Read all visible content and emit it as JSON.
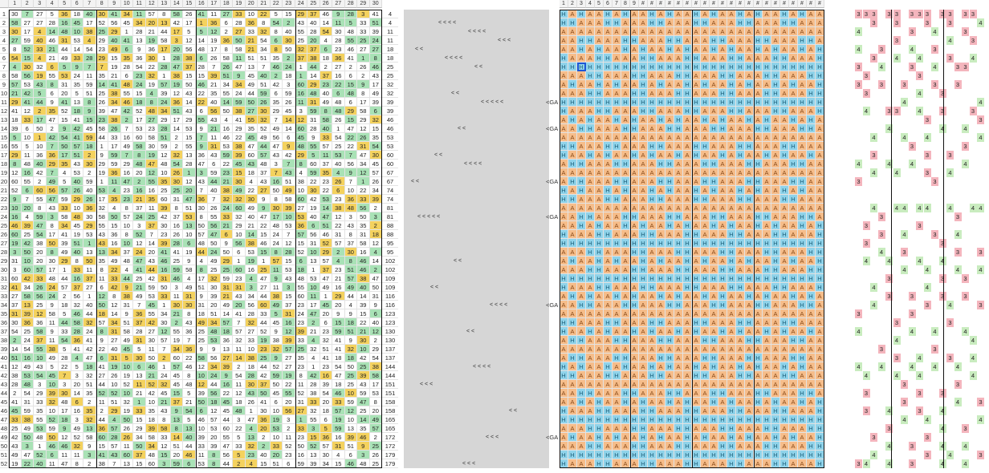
{
  "rows": [
    1,
    2,
    3,
    4,
    5,
    6,
    7,
    8,
    9,
    10,
    11,
    12,
    13,
    14,
    15,
    16,
    17,
    18,
    19,
    20,
    21,
    22,
    23,
    24,
    25,
    26,
    27,
    28,
    29,
    30,
    31,
    32,
    33,
    34,
    35,
    36,
    37,
    38,
    39,
    40,
    41,
    42,
    43,
    44,
    45,
    46,
    47,
    48,
    49,
    50,
    51,
    52
  ],
  "colHeaders": [
    "1",
    "2",
    "3",
    "4",
    "5",
    "6",
    "7",
    "8",
    "9",
    "10",
    "11",
    "12",
    "13",
    "14",
    "15",
    "16",
    "17",
    "18",
    "19",
    "20",
    "21",
    "22",
    "23",
    "24",
    "25",
    "26",
    "27",
    "28",
    "29",
    "30"
  ],
  "hmHeaders": [
    "1",
    "2",
    "3",
    "4",
    "5",
    "6",
    "7",
    "8",
    "9",
    "#",
    "#",
    "#",
    "#",
    "#",
    "#",
    "#",
    "#",
    "#",
    "#",
    "#",
    "#",
    "#",
    "#",
    "#",
    "#",
    "#",
    "#",
    "#",
    "#",
    "#"
  ],
  "totals": [
    4,
    4,
    11,
    11,
    18,
    18,
    25,
    25,
    32,
    32,
    39,
    39,
    46,
    46,
    53,
    53,
    60,
    60,
    67,
    67,
    74,
    74,
    81,
    81,
    88,
    88,
    95,
    95,
    102,
    102,
    109,
    109,
    116,
    116,
    123,
    123,
    130,
    130,
    137,
    137,
    144,
    144,
    151,
    151,
    158,
    158,
    165,
    165,
    172,
    172,
    179,
    179
  ],
  "gaLabel": "<GA",
  "gaRows": [
    10,
    13,
    19,
    23,
    33,
    48
  ],
  "marks": {
    "1": "< < < <",
    "2": "< < < <",
    "3": "< < <",
    "4": "< <",
    "5": "< <  < <",
    "6": "< <",
    "9": "< <",
    "10": "< < < < <",
    "13": "< <",
    "16": "< <",
    "17": "< < < <",
    "19": "< <",
    "23": "< < < < <",
    "28": "< <",
    "31": "< <",
    "33": "< < < <",
    "36": "< <",
    "40": "< < < <",
    "42": "< < <",
    "45": "< <",
    "48": "< < <",
    "51": "< < <"
  },
  "badgeRows": {
    "0": [
      [
        "3",
        "p"
      ],
      [
        "3",
        "p"
      ],
      [
        "3",
        "p"
      ],
      [
        "3",
        "p"
      ],
      [
        "3",
        "p"
      ],
      [
        "3",
        "p"
      ],
      [
        "3",
        "p"
      ],
      [
        "3",
        "p"
      ],
      [
        "3",
        "p"
      ],
      [
        "3",
        "p"
      ],
      [
        "3",
        "p"
      ],
      [
        "3",
        "p"
      ]
    ],
    "1": [
      [
        "3",
        "p"
      ],
      [
        "3",
        "p"
      ],
      [
        "3",
        "p"
      ],
      [
        "3",
        "p"
      ],
      [
        "4",
        "g"
      ]
    ],
    "2": [
      [
        "4",
        "g"
      ],
      [
        "4",
        "g"
      ],
      [
        "3",
        "p"
      ],
      [
        "3",
        "p"
      ]
    ],
    "3": [
      [
        "3",
        "p"
      ],
      [
        "3",
        "p"
      ],
      [
        "4",
        "g"
      ]
    ],
    "4": [
      [
        "3",
        "p"
      ],
      [
        "3",
        "p"
      ],
      [
        "4",
        "g"
      ],
      [
        "4",
        "g"
      ]
    ],
    "5": [
      [
        "4",
        "g"
      ],
      [
        "4",
        "g"
      ],
      [
        "4",
        "g"
      ],
      [
        "3",
        "p"
      ],
      [
        "3",
        "p"
      ]
    ],
    "6": [
      [
        "3",
        "p"
      ],
      [
        "4",
        "g"
      ],
      [
        "4",
        "g"
      ],
      [
        "3",
        "p"
      ],
      [
        "3",
        "p"
      ],
      [
        "3",
        "p"
      ]
    ],
    "7": [
      [
        "3",
        "p"
      ],
      [
        "3",
        "p"
      ]
    ],
    "8": [
      [
        "3",
        "p"
      ],
      [
        "3",
        "p"
      ],
      [
        "3",
        "p"
      ],
      [
        "3",
        "p"
      ],
      [
        "3",
        "p"
      ]
    ],
    "9": [
      [
        "3",
        "p"
      ],
      [
        "3",
        "p"
      ],
      [
        "4",
        "g"
      ]
    ],
    "10": [
      [
        "4",
        "g"
      ],
      [
        "4",
        "g"
      ]
    ],
    "11": [
      [
        "3",
        "p"
      ],
      [
        "3",
        "p"
      ],
      [
        "4",
        "g"
      ],
      [
        "4",
        "g"
      ],
      [
        "3",
        "p"
      ],
      [
        "3",
        "p"
      ]
    ],
    "12": [
      [
        "3",
        "p"
      ],
      [
        "3",
        "p"
      ]
    ],
    "13": [
      [
        "4",
        "g"
      ],
      [
        "4",
        "g"
      ],
      [
        "4",
        "g"
      ]
    ],
    "14": [
      [
        "4",
        "g"
      ],
      [
        "4",
        "g"
      ],
      [
        "4",
        "g"
      ],
      [
        "4",
        "g"
      ]
    ],
    "15": [
      [
        "3",
        "p"
      ],
      [
        "3",
        "p"
      ]
    ],
    "16": [
      [
        "3",
        "p"
      ],
      [
        "3",
        "p"
      ],
      [
        "3",
        "p"
      ]
    ],
    "17": [
      [
        "4",
        "g"
      ],
      [
        "4",
        "g"
      ],
      [
        "4",
        "g"
      ],
      [
        "4",
        "g"
      ]
    ],
    "18": [
      [
        "4",
        "g"
      ],
      [
        "4",
        "g"
      ],
      [
        "4",
        "g"
      ],
      [
        "3",
        "p"
      ]
    ],
    "19": [
      [
        "3",
        "p"
      ],
      [
        "3",
        "p"
      ]
    ],
    "22": [
      [
        "4",
        "g"
      ],
      [
        "4",
        "g"
      ],
      [
        "4",
        "g"
      ],
      [
        "4",
        "g"
      ],
      [
        "4",
        "g"
      ],
      [
        "4",
        "g"
      ],
      [
        "4",
        "g"
      ],
      [
        "4",
        "g"
      ]
    ],
    "23": [
      [
        "3",
        "p"
      ],
      [
        "3",
        "p"
      ]
    ],
    "24": [
      [
        "3",
        "p"
      ],
      [
        "3",
        "p"
      ]
    ],
    "25": [
      [
        "4",
        "g"
      ],
      [
        "4",
        "g"
      ],
      [
        "3",
        "p"
      ],
      [
        "3",
        "p"
      ]
    ],
    "26": [
      [
        "3",
        "p"
      ],
      [
        "3",
        "p"
      ]
    ],
    "27": [
      [
        "3",
        "p"
      ],
      [
        "3",
        "p"
      ],
      [
        "3",
        "p"
      ],
      [
        "4",
        "g"
      ]
    ],
    "28": [
      [
        "4",
        "g"
      ],
      [
        "4",
        "g"
      ],
      [
        "4",
        "g"
      ],
      [
        "4",
        "g"
      ]
    ],
    "29": [
      [
        "4",
        "g"
      ],
      [
        "4",
        "g"
      ],
      [
        "4",
        "g"
      ],
      [
        "4",
        "g"
      ]
    ],
    "30": [
      [
        "3",
        "p"
      ],
      [
        "3",
        "p"
      ],
      [
        "3",
        "p"
      ]
    ],
    "31": [
      [
        "4",
        "g"
      ],
      [
        "4",
        "g"
      ]
    ],
    "32": [
      [
        "3",
        "p"
      ],
      [
        "3",
        "p"
      ],
      [
        "3",
        "p"
      ],
      [
        "3",
        "p"
      ]
    ],
    "33": [
      [
        "4",
        "g"
      ],
      [
        "4",
        "g"
      ],
      [
        "3",
        "p"
      ],
      [
        "3",
        "p"
      ]
    ],
    "34": [
      [
        "3",
        "p"
      ],
      [
        "3",
        "p"
      ]
    ],
    "35": [
      [
        "3",
        "p"
      ],
      [
        "3",
        "p"
      ]
    ],
    "36": [
      [
        "4",
        "g"
      ],
      [
        "4",
        "g"
      ],
      [
        "4",
        "g"
      ],
      [
        "4",
        "g"
      ]
    ],
    "37": [
      [
        "4",
        "g"
      ],
      [
        "4",
        "g"
      ]
    ],
    "38": [
      [
        "3",
        "p"
      ],
      [
        "3",
        "p"
      ]
    ],
    "39": [
      [
        "4",
        "g"
      ],
      [
        "4",
        "g"
      ],
      [
        "3",
        "p"
      ],
      [
        "3",
        "p"
      ]
    ],
    "40": [
      [
        "4",
        "g"
      ],
      [
        "4",
        "g"
      ],
      [
        "4",
        "g"
      ],
      [
        "4",
        "g"
      ],
      [
        "4",
        "g"
      ]
    ],
    "41": [
      [
        "4",
        "g"
      ],
      [
        "4",
        "g"
      ],
      [
        "4",
        "g"
      ],
      [
        "4",
        "g"
      ]
    ],
    "42": [
      [
        "3",
        "p"
      ],
      [
        "3",
        "p"
      ]
    ],
    "43": [
      [
        "3",
        "p"
      ],
      [
        "3",
        "p"
      ],
      [
        "3",
        "p"
      ]
    ],
    "44": [
      [
        "3",
        "p"
      ],
      [
        "3",
        "p"
      ],
      [
        "4",
        "g"
      ]
    ],
    "45": [
      [
        "4",
        "g"
      ],
      [
        "4",
        "g"
      ],
      [
        "3",
        "p"
      ],
      [
        "3",
        "p"
      ]
    ],
    "46": [
      [
        "4",
        "g"
      ],
      [
        "4",
        "g"
      ],
      [
        "4",
        "g"
      ]
    ],
    "47": [
      [
        "3",
        "p"
      ],
      [
        "3",
        "p"
      ],
      [
        "4",
        "g"
      ]
    ],
    "48": [
      [
        "3",
        "p"
      ],
      [
        "3",
        "p"
      ]
    ],
    "49": [
      [
        "3",
        "p"
      ],
      [
        "4",
        "g"
      ],
      [
        "4",
        "g"
      ],
      [
        "4",
        "g"
      ]
    ],
    "50": [
      [
        "4",
        "g"
      ],
      [
        "4",
        "g"
      ],
      [
        "3",
        "p"
      ],
      [
        "3",
        "p"
      ]
    ],
    "51": [
      [
        "3",
        "p"
      ],
      [
        "3",
        "p"
      ],
      [
        "4",
        "g"
      ],
      [
        "4",
        "g"
      ],
      [
        "4",
        "g"
      ],
      [
        "4",
        "g"
      ]
    ]
  },
  "selectedCell": {
    "row": 7,
    "col": 3,
    "value": "A"
  },
  "colors": {
    "green": "#a9e2b6",
    "yellow": "#f4d25e",
    "blueH": "#8fd3ea",
    "orangeA": "#f6bd8a",
    "pink": "#f4b5bd",
    "lightgreen": "#c9ecbf"
  }
}
